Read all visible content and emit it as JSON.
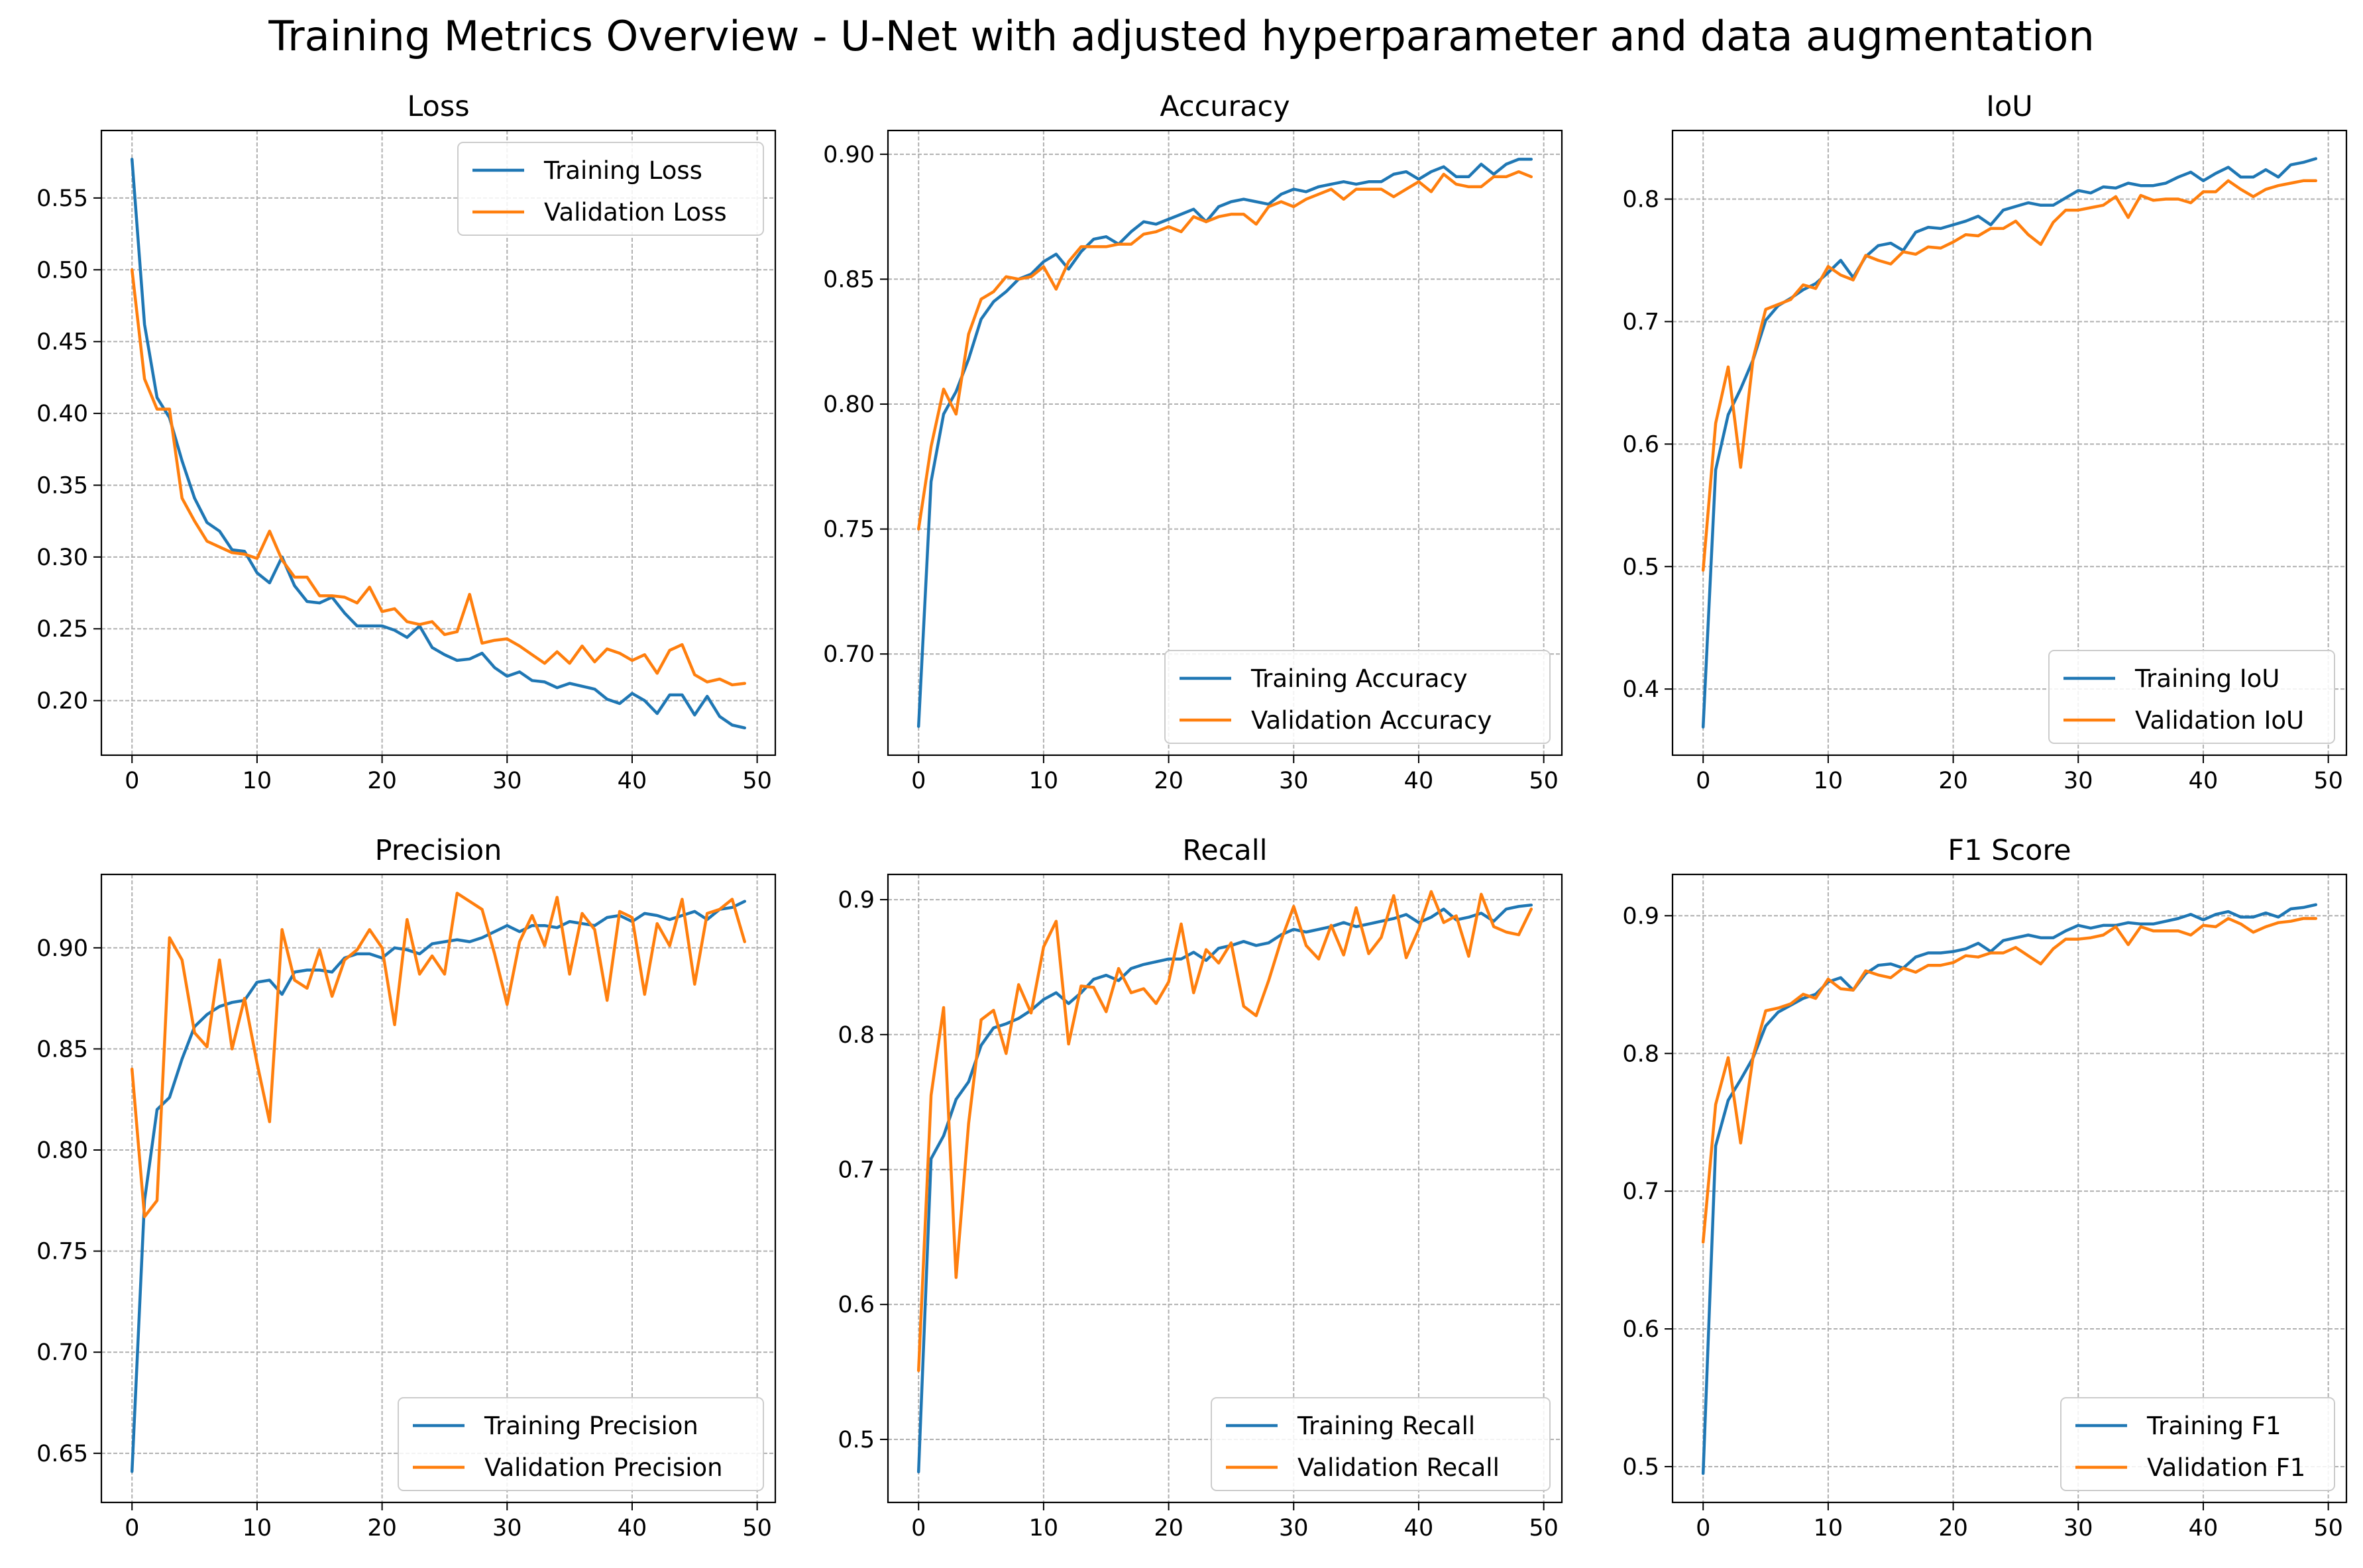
{
  "figure": {
    "title": "Training Metrics Overview - U-Net with adjusted hyperparameter and data augmentation"
  },
  "colors": {
    "training": "#1f77b4",
    "validation": "#ff7f0e",
    "grid": "#b0b0b0",
    "axis": "#000000"
  },
  "chart_data": [
    {
      "type": "line",
      "title": "Loss",
      "xlim": [
        -2.45,
        51.45
      ],
      "ylim": [
        0.162,
        0.597
      ],
      "xticks": [
        0,
        10,
        20,
        30,
        40,
        50
      ],
      "yticks": [
        0.2,
        0.25,
        0.3,
        0.35,
        0.4,
        0.45,
        0.5,
        0.55
      ],
      "ytick_labels": [
        "0.20",
        "0.25",
        "0.30",
        "0.35",
        "0.40",
        "0.45",
        "0.50",
        "0.55"
      ],
      "grid": true,
      "legend": "upper right",
      "series": [
        {
          "name": "Training Loss",
          "color": "#1f77b4",
          "values": [
            0.577,
            0.462,
            0.411,
            0.397,
            0.367,
            0.341,
            0.324,
            0.318,
            0.305,
            0.304,
            0.289,
            0.282,
            0.3,
            0.28,
            0.269,
            0.268,
            0.272,
            0.261,
            0.252,
            0.252,
            0.252,
            0.249,
            0.244,
            0.252,
            0.237,
            0.232,
            0.228,
            0.229,
            0.233,
            0.223,
            0.217,
            0.22,
            0.214,
            0.213,
            0.209,
            0.212,
            0.21,
            0.208,
            0.201,
            0.198,
            0.205,
            0.2,
            0.191,
            0.204,
            0.204,
            0.19,
            0.203,
            0.189,
            0.183,
            0.181
          ]
        },
        {
          "name": "Validation Loss",
          "color": "#ff7f0e",
          "values": [
            0.5,
            0.424,
            0.403,
            0.403,
            0.341,
            0.325,
            0.311,
            0.307,
            0.303,
            0.302,
            0.299,
            0.318,
            0.298,
            0.286,
            0.286,
            0.273,
            0.273,
            0.272,
            0.268,
            0.279,
            0.262,
            0.264,
            0.255,
            0.253,
            0.255,
            0.246,
            0.248,
            0.274,
            0.24,
            0.242,
            0.243,
            0.238,
            0.232,
            0.226,
            0.234,
            0.226,
            0.238,
            0.227,
            0.236,
            0.233,
            0.228,
            0.232,
            0.219,
            0.235,
            0.239,
            0.218,
            0.213,
            0.215,
            0.211,
            0.212
          ]
        }
      ]
    },
    {
      "type": "line",
      "title": "Accuracy",
      "xlim": [
        -2.45,
        51.45
      ],
      "ylim": [
        0.6595,
        0.9095
      ],
      "xticks": [
        0,
        10,
        20,
        30,
        40,
        50
      ],
      "yticks": [
        0.7,
        0.75,
        0.8,
        0.85,
        0.9
      ],
      "ytick_labels": [
        "0.70",
        "0.75",
        "0.80",
        "0.85",
        "0.90"
      ],
      "grid": true,
      "legend": "lower right",
      "series": [
        {
          "name": "Training Accuracy",
          "color": "#1f77b4",
          "values": [
            0.671,
            0.769,
            0.796,
            0.805,
            0.818,
            0.834,
            0.841,
            0.845,
            0.85,
            0.852,
            0.857,
            0.86,
            0.854,
            0.861,
            0.866,
            0.867,
            0.864,
            0.869,
            0.873,
            0.872,
            0.874,
            0.876,
            0.878,
            0.873,
            0.879,
            0.881,
            0.882,
            0.881,
            0.88,
            0.884,
            0.886,
            0.885,
            0.887,
            0.888,
            0.889,
            0.888,
            0.889,
            0.889,
            0.892,
            0.893,
            0.89,
            0.893,
            0.895,
            0.891,
            0.891,
            0.896,
            0.892,
            0.896,
            0.898,
            0.898
          ]
        },
        {
          "name": "Validation Accuracy",
          "color": "#ff7f0e",
          "values": [
            0.75,
            0.783,
            0.806,
            0.796,
            0.828,
            0.842,
            0.845,
            0.851,
            0.85,
            0.851,
            0.855,
            0.846,
            0.857,
            0.863,
            0.863,
            0.863,
            0.864,
            0.864,
            0.868,
            0.869,
            0.871,
            0.869,
            0.875,
            0.873,
            0.875,
            0.876,
            0.876,
            0.872,
            0.879,
            0.881,
            0.879,
            0.882,
            0.884,
            0.886,
            0.882,
            0.886,
            0.886,
            0.886,
            0.883,
            0.886,
            0.889,
            0.885,
            0.892,
            0.888,
            0.887,
            0.887,
            0.891,
            0.891,
            0.893,
            0.891
          ]
        }
      ]
    },
    {
      "type": "line",
      "title": "IoU",
      "xlim": [
        -2.45,
        51.45
      ],
      "ylim": [
        0.346,
        0.856
      ],
      "xticks": [
        0,
        10,
        20,
        30,
        40,
        50
      ],
      "yticks": [
        0.4,
        0.5,
        0.6,
        0.7,
        0.8
      ],
      "ytick_labels": [
        "0.4",
        "0.5",
        "0.6",
        "0.7",
        "0.8"
      ],
      "grid": true,
      "legend": "lower right",
      "series": [
        {
          "name": "Training IoU",
          "color": "#1f77b4",
          "values": [
            0.369,
            0.579,
            0.624,
            0.645,
            0.669,
            0.701,
            0.713,
            0.719,
            0.726,
            0.731,
            0.74,
            0.75,
            0.736,
            0.753,
            0.762,
            0.764,
            0.758,
            0.773,
            0.777,
            0.776,
            0.779,
            0.782,
            0.786,
            0.779,
            0.791,
            0.794,
            0.797,
            0.795,
            0.795,
            0.801,
            0.807,
            0.805,
            0.81,
            0.809,
            0.813,
            0.811,
            0.811,
            0.813,
            0.818,
            0.822,
            0.815,
            0.821,
            0.826,
            0.818,
            0.818,
            0.824,
            0.818,
            0.828,
            0.83,
            0.833
          ]
        },
        {
          "name": "Validation IoU",
          "color": "#ff7f0e",
          "values": [
            0.497,
            0.617,
            0.663,
            0.581,
            0.67,
            0.71,
            0.714,
            0.718,
            0.73,
            0.727,
            0.745,
            0.738,
            0.734,
            0.754,
            0.75,
            0.747,
            0.757,
            0.755,
            0.761,
            0.76,
            0.765,
            0.771,
            0.77,
            0.776,
            0.776,
            0.782,
            0.771,
            0.763,
            0.781,
            0.791,
            0.791,
            0.793,
            0.795,
            0.802,
            0.785,
            0.803,
            0.799,
            0.8,
            0.8,
            0.797,
            0.806,
            0.806,
            0.815,
            0.808,
            0.802,
            0.808,
            0.811,
            0.813,
            0.815,
            0.815
          ]
        }
      ]
    },
    {
      "type": "line",
      "title": "Precision",
      "xlim": [
        -2.45,
        51.45
      ],
      "ylim": [
        0.6257,
        0.9363
      ],
      "xticks": [
        0,
        10,
        20,
        30,
        40,
        50
      ],
      "yticks": [
        0.65,
        0.7,
        0.75,
        0.8,
        0.85,
        0.9
      ],
      "ytick_labels": [
        "0.65",
        "0.70",
        "0.75",
        "0.80",
        "0.85",
        "0.90"
      ],
      "grid": true,
      "legend": "lower right",
      "series": [
        {
          "name": "Training Precision",
          "color": "#1f77b4",
          "values": [
            0.641,
            0.775,
            0.82,
            0.826,
            0.845,
            0.861,
            0.867,
            0.871,
            0.873,
            0.874,
            0.883,
            0.884,
            0.877,
            0.888,
            0.889,
            0.889,
            0.888,
            0.895,
            0.897,
            0.897,
            0.895,
            0.9,
            0.899,
            0.897,
            0.902,
            0.903,
            0.904,
            0.903,
            0.905,
            0.908,
            0.911,
            0.908,
            0.911,
            0.911,
            0.91,
            0.913,
            0.912,
            0.911,
            0.915,
            0.916,
            0.913,
            0.917,
            0.916,
            0.914,
            0.916,
            0.918,
            0.914,
            0.919,
            0.92,
            0.923
          ]
        },
        {
          "name": "Validation Precision",
          "color": "#ff7f0e",
          "values": [
            0.84,
            0.767,
            0.775,
            0.905,
            0.894,
            0.858,
            0.851,
            0.894,
            0.85,
            0.875,
            0.843,
            0.814,
            0.909,
            0.884,
            0.88,
            0.899,
            0.876,
            0.894,
            0.899,
            0.909,
            0.9,
            0.862,
            0.914,
            0.887,
            0.896,
            0.887,
            0.927,
            0.923,
            0.919,
            0.897,
            0.872,
            0.903,
            0.916,
            0.901,
            0.925,
            0.887,
            0.917,
            0.909,
            0.874,
            0.918,
            0.915,
            0.877,
            0.912,
            0.901,
            0.924,
            0.882,
            0.917,
            0.919,
            0.924,
            0.903
          ]
        }
      ]
    },
    {
      "type": "line",
      "title": "Recall",
      "xlim": [
        -2.45,
        51.45
      ],
      "ylim": [
        0.4533,
        0.9187
      ],
      "xticks": [
        0,
        10,
        20,
        30,
        40,
        50
      ],
      "yticks": [
        0.5,
        0.6,
        0.7,
        0.8,
        0.9
      ],
      "ytick_labels": [
        "0.5",
        "0.6",
        "0.7",
        "0.8",
        "0.9"
      ],
      "grid": true,
      "legend": "lower right",
      "series": [
        {
          "name": "Training Recall",
          "color": "#1f77b4",
          "values": [
            0.476,
            0.708,
            0.725,
            0.752,
            0.765,
            0.792,
            0.805,
            0.808,
            0.812,
            0.818,
            0.826,
            0.831,
            0.823,
            0.831,
            0.841,
            0.844,
            0.84,
            0.849,
            0.852,
            0.854,
            0.856,
            0.856,
            0.861,
            0.855,
            0.864,
            0.866,
            0.869,
            0.866,
            0.868,
            0.874,
            0.878,
            0.876,
            0.878,
            0.88,
            0.883,
            0.88,
            0.882,
            0.884,
            0.886,
            0.889,
            0.883,
            0.887,
            0.893,
            0.885,
            0.887,
            0.89,
            0.884,
            0.893,
            0.895,
            0.896
          ]
        },
        {
          "name": "Validation Recall",
          "color": "#ff7f0e",
          "values": [
            0.551,
            0.755,
            0.82,
            0.62,
            0.734,
            0.811,
            0.818,
            0.786,
            0.837,
            0.816,
            0.865,
            0.884,
            0.793,
            0.836,
            0.835,
            0.817,
            0.849,
            0.831,
            0.834,
            0.823,
            0.839,
            0.882,
            0.831,
            0.863,
            0.853,
            0.868,
            0.821,
            0.814,
            0.84,
            0.87,
            0.895,
            0.866,
            0.856,
            0.881,
            0.859,
            0.894,
            0.86,
            0.872,
            0.903,
            0.857,
            0.878,
            0.906,
            0.883,
            0.888,
            0.858,
            0.904,
            0.88,
            0.876,
            0.874,
            0.893
          ]
        }
      ]
    },
    {
      "type": "line",
      "title": "F1 Score",
      "xlim": [
        -2.45,
        51.45
      ],
      "ylim": [
        0.474,
        0.93
      ],
      "xticks": [
        0,
        10,
        20,
        30,
        40,
        50
      ],
      "yticks": [
        0.5,
        0.6,
        0.7,
        0.8,
        0.9
      ],
      "ytick_labels": [
        "0.5",
        "0.6",
        "0.7",
        "0.8",
        "0.9"
      ],
      "grid": true,
      "legend": "lower right",
      "series": [
        {
          "name": "Training F1",
          "color": "#1f77b4",
          "values": [
            0.495,
            0.733,
            0.766,
            0.781,
            0.797,
            0.82,
            0.83,
            0.835,
            0.84,
            0.843,
            0.852,
            0.855,
            0.846,
            0.858,
            0.864,
            0.865,
            0.862,
            0.87,
            0.873,
            0.873,
            0.874,
            0.876,
            0.88,
            0.874,
            0.882,
            0.884,
            0.886,
            0.884,
            0.884,
            0.889,
            0.893,
            0.891,
            0.893,
            0.893,
            0.895,
            0.894,
            0.894,
            0.896,
            0.898,
            0.901,
            0.897,
            0.901,
            0.903,
            0.899,
            0.899,
            0.902,
            0.899,
            0.905,
            0.906,
            0.908
          ]
        },
        {
          "name": "Validation F1",
          "color": "#ff7f0e",
          "values": [
            0.663,
            0.763,
            0.797,
            0.735,
            0.798,
            0.831,
            0.833,
            0.836,
            0.843,
            0.84,
            0.854,
            0.847,
            0.846,
            0.86,
            0.857,
            0.855,
            0.862,
            0.859,
            0.864,
            0.864,
            0.866,
            0.871,
            0.87,
            0.873,
            0.873,
            0.877,
            0.871,
            0.865,
            0.876,
            0.883,
            0.883,
            0.884,
            0.886,
            0.892,
            0.879,
            0.892,
            0.889,
            0.889,
            0.889,
            0.886,
            0.893,
            0.892,
            0.898,
            0.894,
            0.888,
            0.892,
            0.895,
            0.896,
            0.898,
            0.898
          ]
        }
      ]
    }
  ]
}
